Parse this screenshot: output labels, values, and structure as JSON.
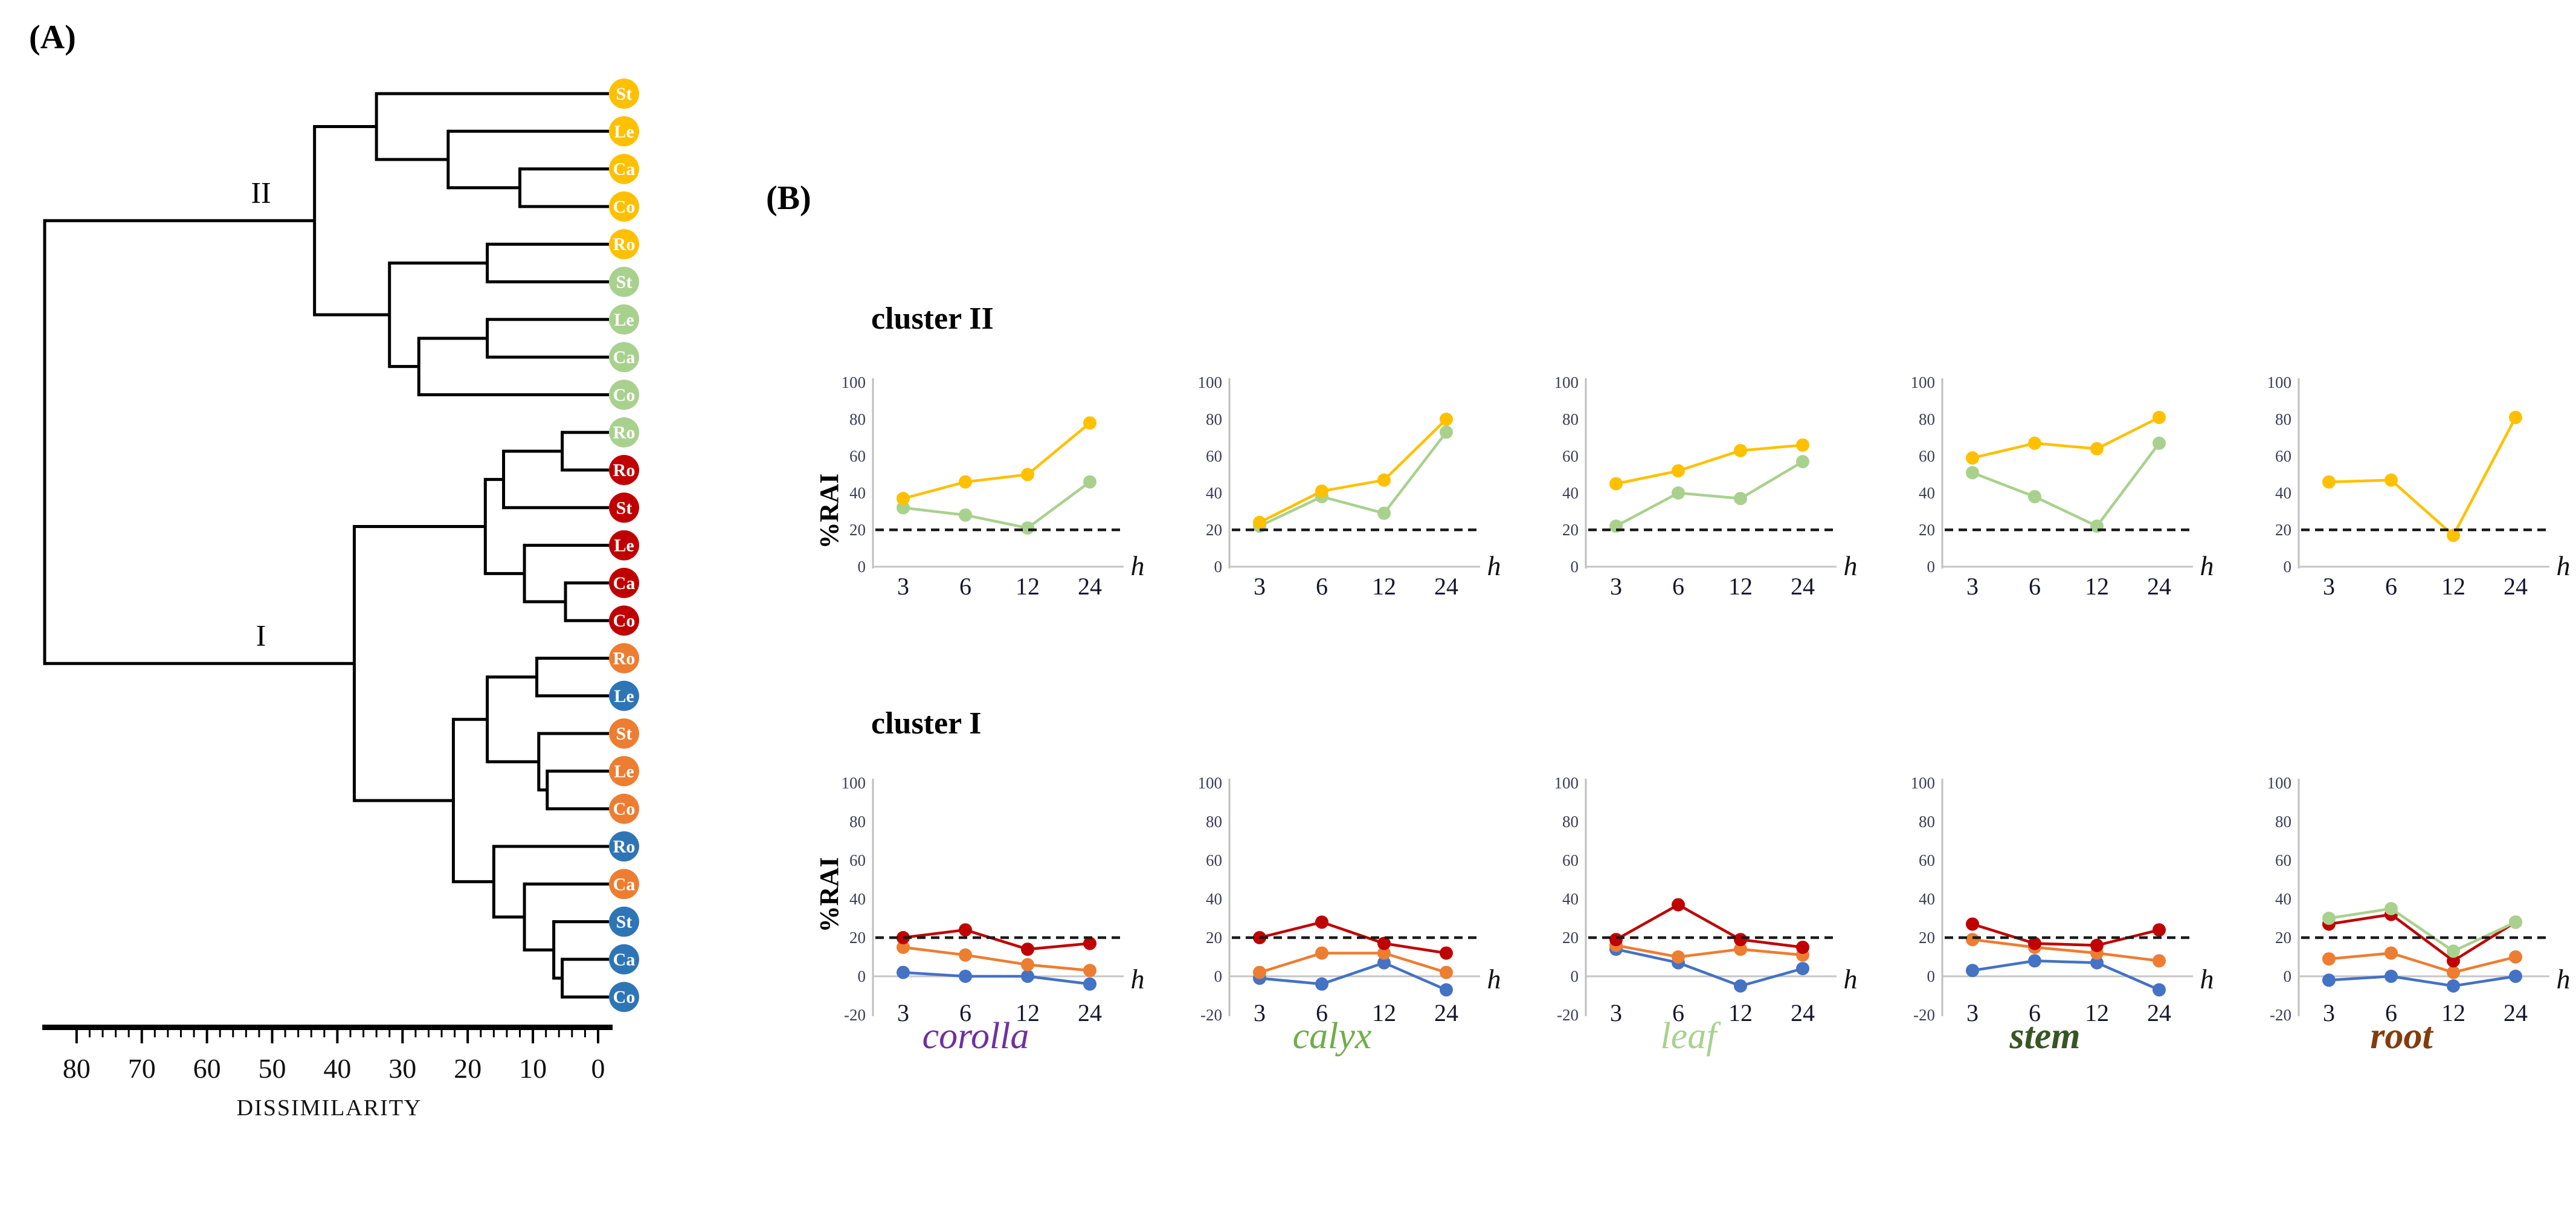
{
  "panel_a": {
    "label": "(A)",
    "axis": {
      "title": "DISSIMILARITY"
    },
    "set_colors": {
      "yellow": "#FFC000",
      "green": "#A9D18E",
      "red": "#C00000",
      "orange": "#ED7D31",
      "blue": "#2E75B6"
    }
  },
  "panel_b": {
    "label": "(B)",
    "row_titles": [
      "cluster II",
      "cluster I"
    ],
    "y_axis_label": "%RAI",
    "x_axis_label": "h",
    "x_categories": [
      3,
      6,
      12,
      24
    ],
    "threshold_value": 20,
    "series_colors": {
      "yellow": "#FFC000",
      "green": "#A9D18E",
      "red": "#C00000",
      "orange": "#ED7D31",
      "blue": "#4472C4"
    },
    "columns": [
      {
        "label": "corolla",
        "color": "#7030A0",
        "bold": false
      },
      {
        "label": "calyx",
        "color": "#70AD47",
        "bold": false
      },
      {
        "label": "leaf",
        "color": "#A9D18E",
        "bold": false
      },
      {
        "label": "stem",
        "color": "#375623",
        "bold": true
      },
      {
        "label": "root",
        "color": "#843C0C",
        "bold": true
      }
    ]
  },
  "chart_data": [
    {
      "type": "dendrogram",
      "orientation": "horizontal-right-leaves",
      "axis": {
        "title": "DISSIMILARITY",
        "range": [
          0,
          80
        ],
        "tick_labels": [
          80,
          70,
          60,
          50,
          40,
          30,
          20,
          10,
          0
        ],
        "minor_tick_step": 2
      },
      "cluster_labels": [
        "II",
        "I"
      ],
      "leaves": [
        {
          "label": "St",
          "set": "yellow"
        },
        {
          "label": "Le",
          "set": "yellow"
        },
        {
          "label": "Ca",
          "set": "yellow"
        },
        {
          "label": "Co",
          "set": "yellow"
        },
        {
          "label": "Ro",
          "set": "yellow"
        },
        {
          "label": "St",
          "set": "green"
        },
        {
          "label": "Le",
          "set": "green"
        },
        {
          "label": "Ca",
          "set": "green"
        },
        {
          "label": "Co",
          "set": "green"
        },
        {
          "label": "Ro",
          "set": "green"
        },
        {
          "label": "Ro",
          "set": "red"
        },
        {
          "label": "St",
          "set": "red"
        },
        {
          "label": "Le",
          "set": "red"
        },
        {
          "label": "Ca",
          "set": "red"
        },
        {
          "label": "Co",
          "set": "red"
        },
        {
          "label": "Ro",
          "set": "orange"
        },
        {
          "label": "Le",
          "set": "blue"
        },
        {
          "label": "St",
          "set": "orange"
        },
        {
          "label": "Le",
          "set": "orange"
        },
        {
          "label": "Co",
          "set": "orange"
        },
        {
          "label": "Ro",
          "set": "blue"
        },
        {
          "label": "Ca",
          "set": "orange"
        },
        {
          "label": "St",
          "set": "blue"
        },
        {
          "label": "Ca",
          "set": "blue"
        },
        {
          "label": "Co",
          "set": "blue"
        }
      ],
      "merges": [
        {
          "a": "L2",
          "b": "L3",
          "d": 12
        },
        {
          "a": "L1",
          "b": "N0",
          "d": 23
        },
        {
          "a": "L0",
          "b": "N1",
          "d": 34
        },
        {
          "a": "L4",
          "b": "L5",
          "d": 17
        },
        {
          "a": "L6",
          "b": "L7",
          "d": 17
        },
        {
          "a": "N4",
          "b": "L8",
          "d": 27.5
        },
        {
          "a": "N3",
          "b": "N5",
          "d": 32
        },
        {
          "a": "N2",
          "b": "N6",
          "d": 43.5,
          "cluster_label": "II"
        },
        {
          "a": "L9",
          "b": "L10",
          "d": 5.5
        },
        {
          "a": "N8",
          "b": "L11",
          "d": 14.5
        },
        {
          "a": "L13",
          "b": "L14",
          "d": 5
        },
        {
          "a": "L12",
          "b": "N10",
          "d": 11.3
        },
        {
          "a": "N9",
          "b": "N11",
          "d": 17.3
        },
        {
          "a": "L15",
          "b": "L16",
          "d": 9.4
        },
        {
          "a": "L18",
          "b": "L19",
          "d": 7.8
        },
        {
          "a": "L17",
          "b": "N14",
          "d": 9.1
        },
        {
          "a": "N13",
          "b": "N15",
          "d": 17
        },
        {
          "a": "L23",
          "b": "L24",
          "d": 5.5
        },
        {
          "a": "L22",
          "b": "N17",
          "d": 6.8
        },
        {
          "a": "L21",
          "b": "N18",
          "d": 11.3
        },
        {
          "a": "L20",
          "b": "N19",
          "d": 16
        },
        {
          "a": "N16",
          "b": "N20",
          "d": 22.2
        },
        {
          "a": "N12",
          "b": "N21",
          "d": 37.4,
          "cluster_label": "I"
        },
        {
          "a": "N7",
          "b": "N22",
          "d": 84.9
        }
      ]
    },
    {
      "type": "line",
      "row": "cluster II",
      "organ": "corolla",
      "x": [
        3,
        6,
        12,
        24
      ],
      "x_label": "h",
      "y_label": "%RAI",
      "ylim": [
        0,
        100
      ],
      "yticks": [
        0,
        20,
        40,
        60,
        80,
        100
      ],
      "threshold": 20,
      "series": [
        {
          "set": "green",
          "values": [
            32,
            28,
            21,
            46
          ]
        },
        {
          "set": "yellow",
          "values": [
            37,
            46,
            50,
            78
          ]
        }
      ]
    },
    {
      "type": "line",
      "row": "cluster II",
      "organ": "calyx",
      "x": [
        3,
        6,
        12,
        24
      ],
      "x_label": "h",
      "y_label": "%RAI",
      "ylim": [
        0,
        100
      ],
      "yticks": [
        0,
        20,
        40,
        60,
        80,
        100
      ],
      "threshold": 20,
      "series": [
        {
          "set": "green",
          "values": [
            22,
            38,
            29,
            73
          ]
        },
        {
          "set": "yellow",
          "values": [
            24,
            41,
            47,
            80
          ]
        }
      ]
    },
    {
      "type": "line",
      "row": "cluster II",
      "organ": "leaf",
      "x": [
        3,
        6,
        12,
        24
      ],
      "x_label": "h",
      "y_label": "%RAI",
      "ylim": [
        0,
        100
      ],
      "yticks": [
        0,
        20,
        40,
        60,
        80,
        100
      ],
      "threshold": 20,
      "series": [
        {
          "set": "green",
          "values": [
            22,
            40,
            37,
            57
          ]
        },
        {
          "set": "yellow",
          "values": [
            45,
            52,
            63,
            66
          ]
        }
      ]
    },
    {
      "type": "line",
      "row": "cluster II",
      "organ": "stem",
      "x": [
        3,
        6,
        12,
        24
      ],
      "x_label": "h",
      "y_label": "%RAI",
      "ylim": [
        0,
        100
      ],
      "yticks": [
        0,
        20,
        40,
        60,
        80,
        100
      ],
      "threshold": 20,
      "series": [
        {
          "set": "green",
          "values": [
            51,
            38,
            22,
            67
          ]
        },
        {
          "set": "yellow",
          "values": [
            59,
            67,
            64,
            81
          ]
        }
      ]
    },
    {
      "type": "line",
      "row": "cluster II",
      "organ": "root",
      "x": [
        3,
        6,
        12,
        24
      ],
      "x_label": "h",
      "y_label": "%RAI",
      "ylim": [
        0,
        100
      ],
      "yticks": [
        0,
        20,
        40,
        60,
        80,
        100
      ],
      "threshold": 20,
      "series": [
        {
          "set": "yellow",
          "values": [
            46,
            47,
            17,
            81
          ]
        }
      ]
    },
    {
      "type": "line",
      "row": "cluster I",
      "organ": "corolla",
      "x": [
        3,
        6,
        12,
        24
      ],
      "x_label": "h",
      "y_label": "%RAI",
      "ylim": [
        -20,
        100
      ],
      "yticks": [
        -20,
        0,
        20,
        40,
        60,
        80,
        100
      ],
      "threshold": 20,
      "series": [
        {
          "set": "blue",
          "values": [
            2,
            0,
            0,
            -4
          ]
        },
        {
          "set": "orange",
          "values": [
            15,
            11,
            6,
            3
          ]
        },
        {
          "set": "red",
          "values": [
            20,
            24,
            14,
            17
          ]
        }
      ]
    },
    {
      "type": "line",
      "row": "cluster I",
      "organ": "calyx",
      "x": [
        3,
        6,
        12,
        24
      ],
      "x_label": "h",
      "y_label": "%RAI",
      "ylim": [
        -20,
        100
      ],
      "yticks": [
        -20,
        0,
        20,
        40,
        60,
        80,
        100
      ],
      "threshold": 20,
      "series": [
        {
          "set": "blue",
          "values": [
            -1,
            -4,
            7,
            -7
          ]
        },
        {
          "set": "orange",
          "values": [
            2,
            12,
            12,
            2
          ]
        },
        {
          "set": "red",
          "values": [
            20,
            28,
            17,
            12
          ]
        }
      ]
    },
    {
      "type": "line",
      "row": "cluster I",
      "organ": "leaf",
      "x": [
        3,
        6,
        12,
        24
      ],
      "x_label": "h",
      "y_label": "%RAI",
      "ylim": [
        -20,
        100
      ],
      "yticks": [
        -20,
        0,
        20,
        40,
        60,
        80,
        100
      ],
      "threshold": 20,
      "series": [
        {
          "set": "blue",
          "values": [
            14,
            7,
            -5,
            4
          ]
        },
        {
          "set": "orange",
          "values": [
            16,
            10,
            14,
            11
          ]
        },
        {
          "set": "red",
          "values": [
            19,
            37,
            19,
            15
          ]
        }
      ]
    },
    {
      "type": "line",
      "row": "cluster I",
      "organ": "stem",
      "x": [
        3,
        6,
        12,
        24
      ],
      "x_label": "h",
      "y_label": "%RAI",
      "ylim": [
        -20,
        100
      ],
      "yticks": [
        -20,
        0,
        20,
        40,
        60,
        80,
        100
      ],
      "threshold": 20,
      "series": [
        {
          "set": "blue",
          "values": [
            3,
            8,
            7,
            -7
          ]
        },
        {
          "set": "orange",
          "values": [
            19,
            15,
            12,
            8
          ]
        },
        {
          "set": "red",
          "values": [
            27,
            17,
            16,
            24
          ]
        }
      ]
    },
    {
      "type": "line",
      "row": "cluster I",
      "organ": "root",
      "x": [
        3,
        6,
        12,
        24
      ],
      "x_label": "h",
      "y_label": "%RAI",
      "ylim": [
        -20,
        100
      ],
      "yticks": [
        -20,
        0,
        20,
        40,
        60,
        80,
        100
      ],
      "threshold": 20,
      "series": [
        {
          "set": "blue",
          "values": [
            -2,
            0,
            -5,
            0
          ]
        },
        {
          "set": "orange",
          "values": [
            9,
            12,
            2,
            10
          ]
        },
        {
          "set": "red",
          "values": [
            27,
            32,
            8,
            28
          ]
        },
        {
          "set": "green",
          "values": [
            30,
            35,
            13,
            28
          ]
        }
      ]
    }
  ]
}
